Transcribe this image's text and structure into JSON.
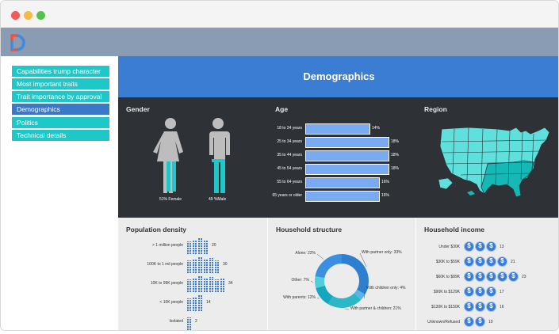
{
  "window": {
    "title": ""
  },
  "sidebar": {
    "items": [
      {
        "label": "Capabilities trump character",
        "active": false
      },
      {
        "label": "Most important traits",
        "active": false
      },
      {
        "label": "Trait importance by approval",
        "active": false
      },
      {
        "label": "Demographics",
        "active": true
      },
      {
        "label": "Politics",
        "active": false
      },
      {
        "label": "Technical details",
        "active": false
      }
    ]
  },
  "header": {
    "title": "Demographics"
  },
  "colors": {
    "accent": "#3b7dd3",
    "teal": "#1ec8c8",
    "dark_panel": "#2e3236",
    "bar_blue": "#7aaaf0",
    "icon_blue": "#3b7dd3"
  },
  "panels": {
    "gender": {
      "title": "Gender",
      "female_label": "51% Female",
      "male_label": "49 %Male",
      "female_pct": 51,
      "male_pct": 49
    },
    "age": {
      "title": "Age",
      "chart_data": {
        "type": "bar",
        "categories": [
          "18 to 24 years",
          "25 to 34 years",
          "35 to 44 years",
          "45 to 54 years",
          "55 to 64 years",
          "65 years or older"
        ],
        "values": [
          14,
          18,
          18,
          18,
          16,
          16
        ],
        "value_labels": [
          "14%",
          "18%",
          "18%",
          "18%",
          "16%",
          "16%"
        ]
      }
    },
    "region": {
      "title": "Region",
      "icon": "us-map-icon"
    },
    "population": {
      "title": "Population density",
      "chart_data": {
        "type": "bar",
        "categories": [
          "> 1 million people",
          "100K to 1 mil people",
          "10K to 99K people",
          "< 10K people",
          "Isolated"
        ],
        "values": [
          20,
          30,
          34,
          14,
          2
        ],
        "value_labels": [
          "20",
          "30",
          "34",
          "14",
          "2"
        ]
      },
      "icon": "building-icon"
    },
    "household": {
      "title": "Household structure",
      "chart_data": {
        "type": "pie",
        "categories": [
          "With partner only",
          "With children only",
          "With partner & children",
          "With parents",
          "Other",
          "Alone"
        ],
        "values": [
          33,
          4,
          21,
          12,
          7,
          22
        ],
        "labels": [
          "With partner only:  33%",
          "With children only:  4%",
          "With partner & children:  21%",
          "With parents:  12%",
          "Other:  7%",
          "Alone:  22%"
        ],
        "colors": [
          "#2f7fd0",
          "#5ab4e8",
          "#2ab8c8",
          "#17a6bf",
          "#4fd0d8",
          "#3c8ee0"
        ]
      }
    },
    "income": {
      "title": "Household income",
      "chart_data": {
        "type": "bar",
        "categories": [
          "Under $30K",
          "$30K to $59K",
          "$60K to $89K",
          "$90K to $129K",
          "$130K to $150K",
          "Unknown/Refused"
        ],
        "values": [
          13,
          21,
          23,
          17,
          16,
          10
        ],
        "value_labels": [
          "13",
          "21",
          "23",
          "17",
          "16",
          "10"
        ]
      },
      "icon": "dollar-coin-icon"
    }
  }
}
